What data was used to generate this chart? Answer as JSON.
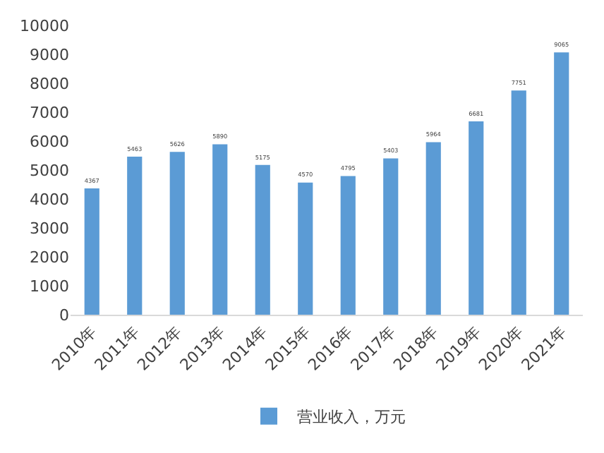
{
  "chart_data": {
    "type": "bar",
    "categories": [
      "2010年",
      "2011年",
      "2012年",
      "2013年",
      "2014年",
      "2015年",
      "2016年",
      "2017年",
      "2018年",
      "2019年",
      "2020年",
      "2021年"
    ],
    "series": [
      {
        "name": "营业收入，万元",
        "color": "#5b9bd5",
        "values": [
          4367,
          5463,
          5626,
          5890,
          5175,
          4570,
          4795,
          5403,
          5964,
          6681,
          7751,
          9065
        ]
      }
    ],
    "ylim": [
      0,
      10000
    ],
    "yticks": [
      0,
      1000,
      2000,
      3000,
      4000,
      5000,
      6000,
      7000,
      8000,
      9000,
      10000
    ],
    "grid": false,
    "legend": "bottom",
    "data_labels": true
  }
}
